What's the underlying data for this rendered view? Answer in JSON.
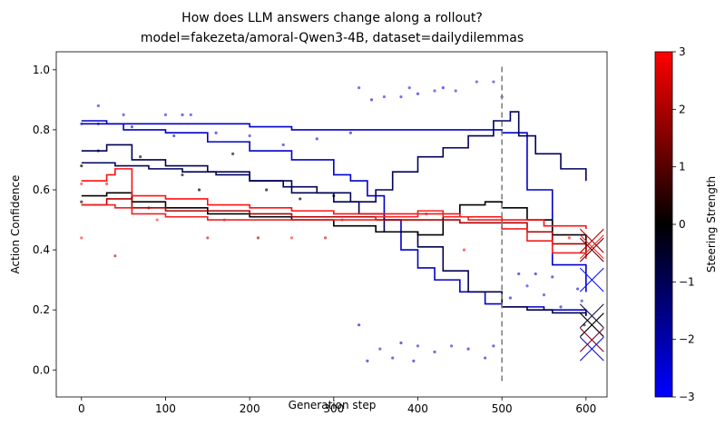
{
  "chart_data": {
    "type": "line",
    "title_lines": [
      "How does LLM answers change along a rollout?",
      "model=fakezeta/amoral-Qwen3-4B, dataset=dailydilemmas"
    ],
    "xlabel": "Generation step",
    "ylabel": "Action Confidence",
    "xlim": [
      -30,
      625
    ],
    "ylim": [
      -0.09,
      1.06
    ],
    "xticks": [
      0,
      100,
      200,
      300,
      400,
      500,
      600
    ],
    "xtick_labels": [
      "0",
      "100",
      "200",
      "300",
      "400",
      "500",
      "600"
    ],
    "yticks": [
      0.0,
      0.2,
      0.4,
      0.6,
      0.8,
      1.0
    ],
    "ytick_labels": [
      "0.0",
      "0.2",
      "0.4",
      "0.6",
      "0.8",
      "1.0"
    ],
    "grid": false,
    "vline": {
      "x": 500,
      "color": "#808080",
      "style": "dashed"
    },
    "colorbar": {
      "label": "Steering Strength",
      "range": [
        -3,
        3
      ],
      "ticks": [
        -3,
        -2,
        -1,
        0,
        1,
        2,
        3
      ],
      "tick_labels": [
        "−3",
        "−2",
        "−1",
        "0",
        "1",
        "2",
        "3"
      ],
      "colors": [
        "#0000ff",
        "#000000",
        "#ff0000"
      ]
    },
    "series": [
      {
        "steer": -2,
        "color": "#0000c8",
        "x": [
          0,
          30,
          60,
          100,
          150,
          200,
          250,
          300,
          350,
          400,
          450,
          500,
          530,
          560,
          600
        ],
        "y": [
          0.83,
          0.82,
          0.82,
          0.82,
          0.82,
          0.81,
          0.8,
          0.8,
          0.8,
          0.8,
          0.8,
          0.79,
          0.6,
          0.35,
          0.26
        ]
      },
      {
        "steer": -2,
        "color": "#0000c8",
        "x": [
          0,
          50,
          100,
          150,
          200,
          250,
          300,
          320,
          340,
          360,
          380,
          400,
          420,
          450,
          480,
          500,
          550,
          600
        ],
        "y": [
          0.82,
          0.8,
          0.79,
          0.76,
          0.73,
          0.7,
          0.65,
          0.63,
          0.58,
          0.5,
          0.4,
          0.34,
          0.3,
          0.26,
          0.22,
          0.21,
          0.2,
          0.18
        ]
      },
      {
        "steer": -1,
        "color": "#000060",
        "x": [
          0,
          40,
          80,
          120,
          160,
          200,
          240,
          280,
          320,
          350,
          370,
          400,
          430,
          460,
          490,
          510,
          520,
          540,
          570,
          600
        ],
        "y": [
          0.69,
          0.68,
          0.67,
          0.66,
          0.65,
          0.63,
          0.61,
          0.59,
          0.56,
          0.6,
          0.66,
          0.71,
          0.74,
          0.78,
          0.83,
          0.86,
          0.78,
          0.72,
          0.67,
          0.63
        ]
      },
      {
        "steer": -1,
        "color": "#000050",
        "x": [
          0,
          30,
          60,
          100,
          150,
          200,
          250,
          300,
          330,
          360,
          400,
          430,
          460,
          500,
          530,
          560,
          600
        ],
        "y": [
          0.73,
          0.75,
          0.7,
          0.68,
          0.66,
          0.63,
          0.59,
          0.56,
          0.52,
          0.46,
          0.41,
          0.33,
          0.26,
          0.21,
          0.2,
          0.19,
          0.18
        ]
      },
      {
        "steer": 0,
        "color": "#000000",
        "x": [
          0,
          30,
          60,
          100,
          150,
          200,
          250,
          300,
          350,
          400,
          430,
          450,
          480,
          500,
          530,
          560,
          600
        ],
        "y": [
          0.58,
          0.59,
          0.56,
          0.54,
          0.52,
          0.51,
          0.5,
          0.48,
          0.46,
          0.45,
          0.51,
          0.55,
          0.56,
          0.54,
          0.5,
          0.45,
          0.4
        ]
      },
      {
        "steer": 1,
        "color": "#b00000",
        "x": [
          0,
          30,
          60,
          100,
          150,
          200,
          250,
          300,
          350,
          400,
          450,
          500,
          530,
          560,
          600
        ],
        "y": [
          0.55,
          0.57,
          0.54,
          0.53,
          0.53,
          0.52,
          0.51,
          0.51,
          0.5,
          0.5,
          0.49,
          0.49,
          0.46,
          0.42,
          0.38
        ]
      },
      {
        "steer": 2,
        "color": "#ff1010",
        "x": [
          0,
          30,
          40,
          60,
          100,
          150,
          200,
          250,
          300,
          350,
          400,
          450,
          500,
          550,
          600
        ],
        "y": [
          0.63,
          0.65,
          0.67,
          0.58,
          0.57,
          0.55,
          0.54,
          0.53,
          0.52,
          0.52,
          0.52,
          0.51,
          0.5,
          0.48,
          0.47
        ]
      },
      {
        "steer": 3,
        "color": "#ee2020",
        "x": [
          0,
          40,
          60,
          100,
          150,
          200,
          250,
          300,
          350,
          400,
          430,
          460,
          500,
          530,
          560,
          600
        ],
        "y": [
          0.55,
          0.54,
          0.52,
          0.51,
          0.5,
          0.5,
          0.5,
          0.5,
          0.51,
          0.53,
          0.51,
          0.5,
          0.47,
          0.43,
          0.39,
          0.37
        ]
      }
    ],
    "markers": [
      {
        "x": 607,
        "y": 0.43,
        "color": "#c00000"
      },
      {
        "x": 607,
        "y": 0.41,
        "color": "#ff2020"
      },
      {
        "x": 607,
        "y": 0.4,
        "color": "#600000"
      },
      {
        "x": 607,
        "y": 0.3,
        "color": "#1010ff"
      },
      {
        "x": 607,
        "y": 0.18,
        "color": "#101040"
      },
      {
        "x": 607,
        "y": 0.15,
        "color": "#000000"
      },
      {
        "x": 607,
        "y": 0.1,
        "color": "#800020"
      },
      {
        "x": 607,
        "y": 0.07,
        "color": "#1010e0"
      }
    ],
    "scatter": [
      {
        "x": 0,
        "y": 0.82,
        "c": "#5050e0"
      },
      {
        "x": 0,
        "y": 0.68,
        "c": "#303030"
      },
      {
        "x": 0,
        "y": 0.62,
        "c": "#ff6060"
      },
      {
        "x": 0,
        "y": 0.56,
        "c": "#603030"
      },
      {
        "x": 0,
        "y": 0.44,
        "c": "#ff6060"
      },
      {
        "x": 20,
        "y": 0.88,
        "c": "#6060e0"
      },
      {
        "x": 20,
        "y": 0.82,
        "c": "#5050d0"
      },
      {
        "x": 20,
        "y": 0.73,
        "c": "#303060"
      },
      {
        "x": 30,
        "y": 0.62,
        "c": "#ff5050"
      },
      {
        "x": 40,
        "y": 0.38,
        "c": "#d05050"
      },
      {
        "x": 50,
        "y": 0.85,
        "c": "#6060e0"
      },
      {
        "x": 60,
        "y": 0.81,
        "c": "#5050e0"
      },
      {
        "x": 70,
        "y": 0.71,
        "c": "#404040"
      },
      {
        "x": 80,
        "y": 0.54,
        "c": "#b04040"
      },
      {
        "x": 90,
        "y": 0.5,
        "c": "#ff6060"
      },
      {
        "x": 100,
        "y": 0.85,
        "c": "#6060e0"
      },
      {
        "x": 110,
        "y": 0.78,
        "c": "#5050d0"
      },
      {
        "x": 120,
        "y": 0.65,
        "c": "#404060"
      },
      {
        "x": 120,
        "y": 0.85,
        "c": "#5050e0"
      },
      {
        "x": 130,
        "y": 0.85,
        "c": "#6060e0"
      },
      {
        "x": 140,
        "y": 0.6,
        "c": "#303030"
      },
      {
        "x": 150,
        "y": 0.44,
        "c": "#d05050"
      },
      {
        "x": 160,
        "y": 0.79,
        "c": "#5050e0"
      },
      {
        "x": 170,
        "y": 0.5,
        "c": "#ff6060"
      },
      {
        "x": 180,
        "y": 0.72,
        "c": "#404060"
      },
      {
        "x": 200,
        "y": 0.78,
        "c": "#6060e0"
      },
      {
        "x": 210,
        "y": 0.44,
        "c": "#c04040"
      },
      {
        "x": 220,
        "y": 0.6,
        "c": "#303050"
      },
      {
        "x": 240,
        "y": 0.75,
        "c": "#5050e0"
      },
      {
        "x": 250,
        "y": 0.44,
        "c": "#ff6060"
      },
      {
        "x": 260,
        "y": 0.57,
        "c": "#303030"
      },
      {
        "x": 280,
        "y": 0.77,
        "c": "#5050e0"
      },
      {
        "x": 290,
        "y": 0.44,
        "c": "#d05050"
      },
      {
        "x": 300,
        "y": 0.58,
        "c": "#303050"
      },
      {
        "x": 310,
        "y": 0.5,
        "c": "#ff5050"
      },
      {
        "x": 320,
        "y": 0.79,
        "c": "#5050e0"
      },
      {
        "x": 330,
        "y": 0.94,
        "c": "#6060e0"
      },
      {
        "x": 330,
        "y": 0.15,
        "c": "#5050e0"
      },
      {
        "x": 340,
        "y": 0.03,
        "c": "#5050e0"
      },
      {
        "x": 345,
        "y": 0.9,
        "c": "#5050d0"
      },
      {
        "x": 355,
        "y": 0.07,
        "c": "#6060e0"
      },
      {
        "x": 360,
        "y": 0.91,
        "c": "#6060e0"
      },
      {
        "x": 370,
        "y": 0.04,
        "c": "#5050e0"
      },
      {
        "x": 380,
        "y": 0.91,
        "c": "#6060e0"
      },
      {
        "x": 380,
        "y": 0.09,
        "c": "#5050d0"
      },
      {
        "x": 390,
        "y": 0.94,
        "c": "#6060e0"
      },
      {
        "x": 395,
        "y": 0.03,
        "c": "#5050e0"
      },
      {
        "x": 400,
        "y": 0.92,
        "c": "#5050e0"
      },
      {
        "x": 400,
        "y": 0.08,
        "c": "#6060e0"
      },
      {
        "x": 410,
        "y": 0.52,
        "c": "#d05050"
      },
      {
        "x": 420,
        "y": 0.93,
        "c": "#6060e0"
      },
      {
        "x": 420,
        "y": 0.06,
        "c": "#5050e0"
      },
      {
        "x": 430,
        "y": 0.94,
        "c": "#5050e0"
      },
      {
        "x": 440,
        "y": 0.08,
        "c": "#6060e0"
      },
      {
        "x": 445,
        "y": 0.93,
        "c": "#6060e0"
      },
      {
        "x": 455,
        "y": 0.4,
        "c": "#ff5050"
      },
      {
        "x": 460,
        "y": 0.07,
        "c": "#5050e0"
      },
      {
        "x": 470,
        "y": 0.96,
        "c": "#6060e0"
      },
      {
        "x": 480,
        "y": 0.04,
        "c": "#5050e0"
      },
      {
        "x": 490,
        "y": 0.96,
        "c": "#6060e0"
      },
      {
        "x": 490,
        "y": 0.08,
        "c": "#5050e0"
      },
      {
        "x": 500,
        "y": 0.91,
        "c": "#5050e0"
      },
      {
        "x": 510,
        "y": 0.24,
        "c": "#5050e0"
      },
      {
        "x": 520,
        "y": 0.32,
        "c": "#5050e0"
      },
      {
        "x": 530,
        "y": 0.28,
        "c": "#6060e0"
      },
      {
        "x": 540,
        "y": 0.32,
        "c": "#5050e0"
      },
      {
        "x": 550,
        "y": 0.25,
        "c": "#6060e0"
      },
      {
        "x": 560,
        "y": 0.31,
        "c": "#5050e0"
      },
      {
        "x": 570,
        "y": 0.21,
        "c": "#5050e0"
      },
      {
        "x": 580,
        "y": 0.44,
        "c": "#ff5050"
      },
      {
        "x": 590,
        "y": 0.27,
        "c": "#5050e0"
      },
      {
        "x": 595,
        "y": 0.23,
        "c": "#6060e0"
      },
      {
        "x": 598,
        "y": 0.15,
        "c": "#505050"
      }
    ]
  }
}
